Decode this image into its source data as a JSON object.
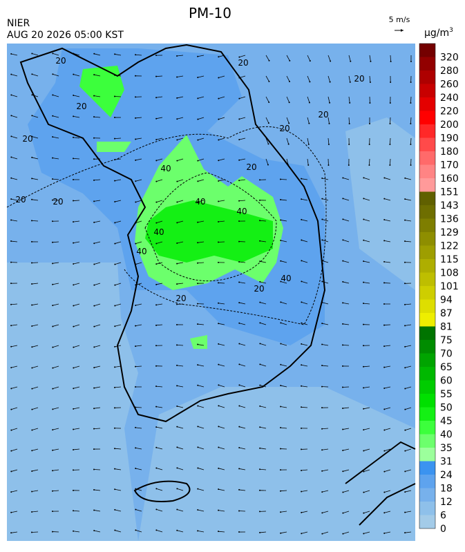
{
  "header": {
    "title": "PM-10",
    "agency": "NIER",
    "datetime": "AUG 20 2026 05:00 KST",
    "wind_scale": "5 m/s",
    "unit": "μg/m",
    "unit_sup": "3"
  },
  "contour_labels": [
    "20",
    "20",
    "20",
    "20",
    "20",
    "20",
    "20",
    "20",
    "20",
    "20",
    "40",
    "40",
    "40",
    "40",
    "40",
    "40",
    "20",
    "20"
  ],
  "legend": {
    "levels": [
      {
        "label": "0",
        "color": "#a3cbe8"
      },
      {
        "label": "6",
        "color": "#8ec0ea"
      },
      {
        "label": "12",
        "color": "#77b1ec"
      },
      {
        "label": "18",
        "color": "#5ea3ee"
      },
      {
        "label": "24",
        "color": "#3b93f0"
      },
      {
        "label": "31",
        "color": "#9cff9c"
      },
      {
        "label": "35",
        "color": "#6cff6c"
      },
      {
        "label": "40",
        "color": "#3cff3c"
      },
      {
        "label": "45",
        "color": "#14f014"
      },
      {
        "label": "50",
        "color": "#00e000"
      },
      {
        "label": "55",
        "color": "#00cc00"
      },
      {
        "label": "60",
        "color": "#00b800"
      },
      {
        "label": "65",
        "color": "#00a400"
      },
      {
        "label": "70",
        "color": "#008c00"
      },
      {
        "label": "75",
        "color": "#007400"
      },
      {
        "label": "81",
        "color": "#eeee00"
      },
      {
        "label": "87",
        "color": "#dede00"
      },
      {
        "label": "94",
        "color": "#cece00"
      },
      {
        "label": "101",
        "color": "#bebe00"
      },
      {
        "label": "108",
        "color": "#aeae00"
      },
      {
        "label": "115",
        "color": "#9e9e00"
      },
      {
        "label": "122",
        "color": "#8e8e00"
      },
      {
        "label": "129",
        "color": "#7e7e00"
      },
      {
        "label": "136",
        "color": "#6e6e00"
      },
      {
        "label": "143",
        "color": "#606000"
      },
      {
        "label": "151",
        "color": "#ff9a9a"
      },
      {
        "label": "160",
        "color": "#ff8484"
      },
      {
        "label": "170",
        "color": "#ff6a6a"
      },
      {
        "label": "180",
        "color": "#ff4a4a"
      },
      {
        "label": "190",
        "color": "#ff2828"
      },
      {
        "label": "200",
        "color": "#ff0000"
      },
      {
        "label": "220",
        "color": "#e40000"
      },
      {
        "label": "240",
        "color": "#c80000"
      },
      {
        "label": "260",
        "color": "#ae0000"
      },
      {
        "label": "280",
        "color": "#920000"
      },
      {
        "label": "320",
        "color": "#740000"
      }
    ]
  }
}
